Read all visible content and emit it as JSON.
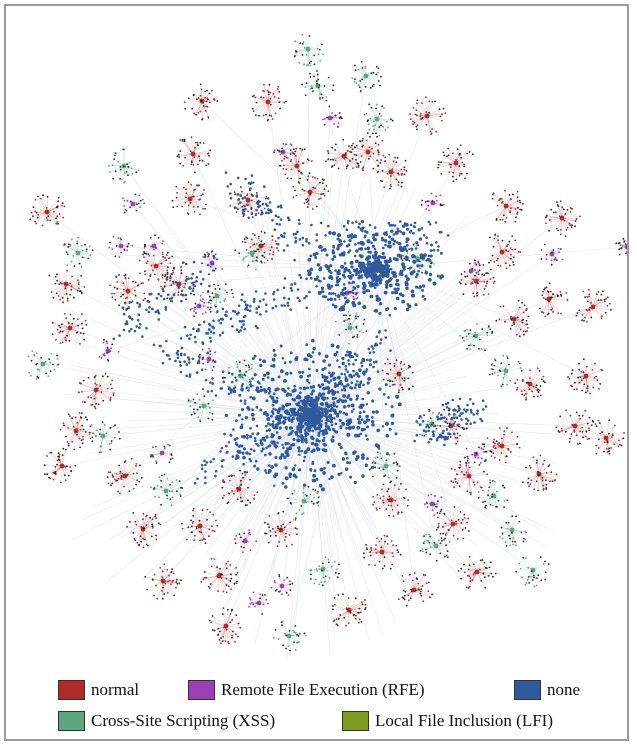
{
  "legend": {
    "items": [
      {
        "label": "normal",
        "color": "#b02a2a"
      },
      {
        "label": "Remote File Execution (RFE)",
        "color": "#9b3fb5"
      },
      {
        "label": "none",
        "color": "#2f5a9e"
      },
      {
        "label": "Cross-Site Scripting (XSS)",
        "color": "#5fa57f"
      },
      {
        "label": "Local File Inclusion (LFI)",
        "color": "#7f9a1f"
      }
    ]
  },
  "graph": {
    "edge_color": "#c9d3e6",
    "clusters": [
      {
        "category": "normal",
        "count": 52
      },
      {
        "category": "xss",
        "count": 26
      },
      {
        "category": "rfe",
        "count": 20
      },
      {
        "category": "none",
        "count": 1
      }
    ]
  }
}
